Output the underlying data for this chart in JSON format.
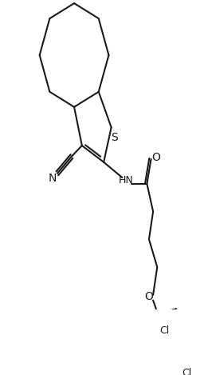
{
  "bg_color": "#ffffff",
  "line_color": "#1a1a1a",
  "line_width": 1.5,
  "font_size": 9,
  "figsize": [
    2.61,
    4.69
  ],
  "dpi": 100,
  "S_label": "S",
  "HN_label": "HN",
  "O_label": "O",
  "N_label": "N",
  "Cl_label": "Cl"
}
